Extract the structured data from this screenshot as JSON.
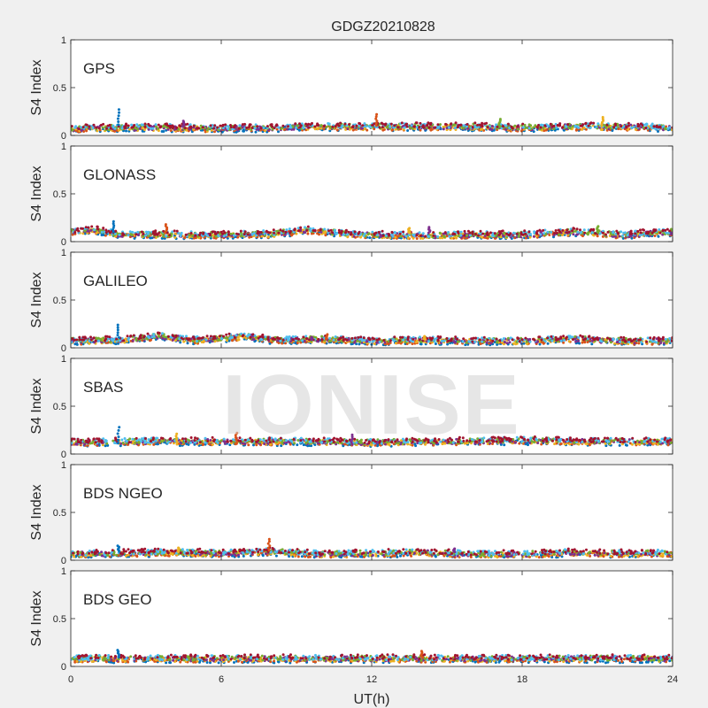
{
  "chart_data": {
    "type": "scatter",
    "title": "GDGZ20210828",
    "xlabel": "UT(h)",
    "ylabel": "S4 Index",
    "xlim": [
      0,
      24
    ],
    "ylim": [
      0,
      1
    ],
    "xticks": [
      "0",
      "6",
      "12",
      "18",
      "24"
    ],
    "yticks": [
      "0",
      "0.5",
      "1"
    ],
    "grid": false,
    "watermark": "IONISE",
    "series_colors": [
      "#0072bd",
      "#d95319",
      "#edb120",
      "#7e2f8e",
      "#77ac30",
      "#4dbeee",
      "#a2142f"
    ],
    "panels": [
      {
        "name": "GPS",
        "baseline": [
          [
            0,
            0.07
          ],
          [
            2,
            0.08
          ],
          [
            4,
            0.08
          ],
          [
            6,
            0.07
          ],
          [
            8,
            0.08
          ],
          [
            10,
            0.09
          ],
          [
            12,
            0.09
          ],
          [
            14,
            0.09
          ],
          [
            16,
            0.09
          ],
          [
            18,
            0.08
          ],
          [
            20,
            0.09
          ],
          [
            22,
            0.09
          ],
          [
            24,
            0.08
          ]
        ],
        "spikes": [
          [
            1.9,
            0.27
          ],
          [
            12.2,
            0.22
          ],
          [
            21.2,
            0.19
          ],
          [
            4.5,
            0.15
          ],
          [
            17.1,
            0.17
          ]
        ]
      },
      {
        "name": "GLONASS",
        "baseline": [
          [
            0,
            0.1
          ],
          [
            1,
            0.12
          ],
          [
            2,
            0.07
          ],
          [
            4,
            0.07
          ],
          [
            6,
            0.07
          ],
          [
            8,
            0.08
          ],
          [
            9.5,
            0.12
          ],
          [
            11,
            0.08
          ],
          [
            12,
            0.07
          ],
          [
            14,
            0.06
          ],
          [
            16,
            0.07
          ],
          [
            18,
            0.07
          ],
          [
            20,
            0.1
          ],
          [
            22,
            0.07
          ],
          [
            24,
            0.1
          ]
        ],
        "spikes": [
          [
            1.7,
            0.21
          ],
          [
            3.8,
            0.18
          ],
          [
            13.5,
            0.14
          ],
          [
            14.3,
            0.15
          ],
          [
            21,
            0.16
          ]
        ]
      },
      {
        "name": "GALILEO",
        "baseline": [
          [
            0,
            0.07
          ],
          [
            2,
            0.08
          ],
          [
            3.5,
            0.12
          ],
          [
            5,
            0.08
          ],
          [
            7,
            0.12
          ],
          [
            8,
            0.08
          ],
          [
            10,
            0.09
          ],
          [
            12,
            0.07
          ],
          [
            14,
            0.08
          ],
          [
            16,
            0.07
          ],
          [
            18,
            0.07
          ],
          [
            20,
            0.09
          ],
          [
            22,
            0.07
          ],
          [
            24,
            0.07
          ]
        ],
        "spikes": [
          [
            1.9,
            0.24
          ],
          [
            10.2,
            0.14
          ],
          [
            14.1,
            0.12
          ],
          [
            9.6,
            0.11
          ]
        ]
      },
      {
        "name": "SBAS",
        "baseline": [
          [
            0,
            0.12
          ],
          [
            3,
            0.13
          ],
          [
            6,
            0.13
          ],
          [
            9,
            0.13
          ],
          [
            12,
            0.12
          ],
          [
            15,
            0.13
          ],
          [
            18,
            0.14
          ],
          [
            21,
            0.13
          ],
          [
            24,
            0.13
          ]
        ],
        "spikes": [
          [
            1.9,
            0.28
          ],
          [
            6.6,
            0.22
          ],
          [
            4.2,
            0.21
          ],
          [
            11.2,
            0.2
          ]
        ]
      },
      {
        "name": "BDS NGEO",
        "baseline": [
          [
            0,
            0.06
          ],
          [
            2,
            0.07
          ],
          [
            4,
            0.08
          ],
          [
            6,
            0.07
          ],
          [
            8,
            0.09
          ],
          [
            10,
            0.06
          ],
          [
            12,
            0.07
          ],
          [
            14,
            0.08
          ],
          [
            16,
            0.06
          ],
          [
            18,
            0.06
          ],
          [
            20,
            0.08
          ],
          [
            22,
            0.07
          ],
          [
            24,
            0.07
          ]
        ],
        "spikes": [
          [
            1.9,
            0.15
          ],
          [
            7.9,
            0.22
          ],
          [
            4.3,
            0.13
          ],
          [
            15.3,
            0.12
          ]
        ]
      },
      {
        "name": "BDS GEO",
        "baseline": [
          [
            0,
            0.08
          ],
          [
            4,
            0.08
          ],
          [
            8,
            0.08
          ],
          [
            12,
            0.08
          ],
          [
            16,
            0.08
          ],
          [
            20,
            0.08
          ],
          [
            24,
            0.08
          ]
        ],
        "spikes": [
          [
            1.9,
            0.17
          ],
          [
            14,
            0.16
          ]
        ]
      }
    ]
  }
}
